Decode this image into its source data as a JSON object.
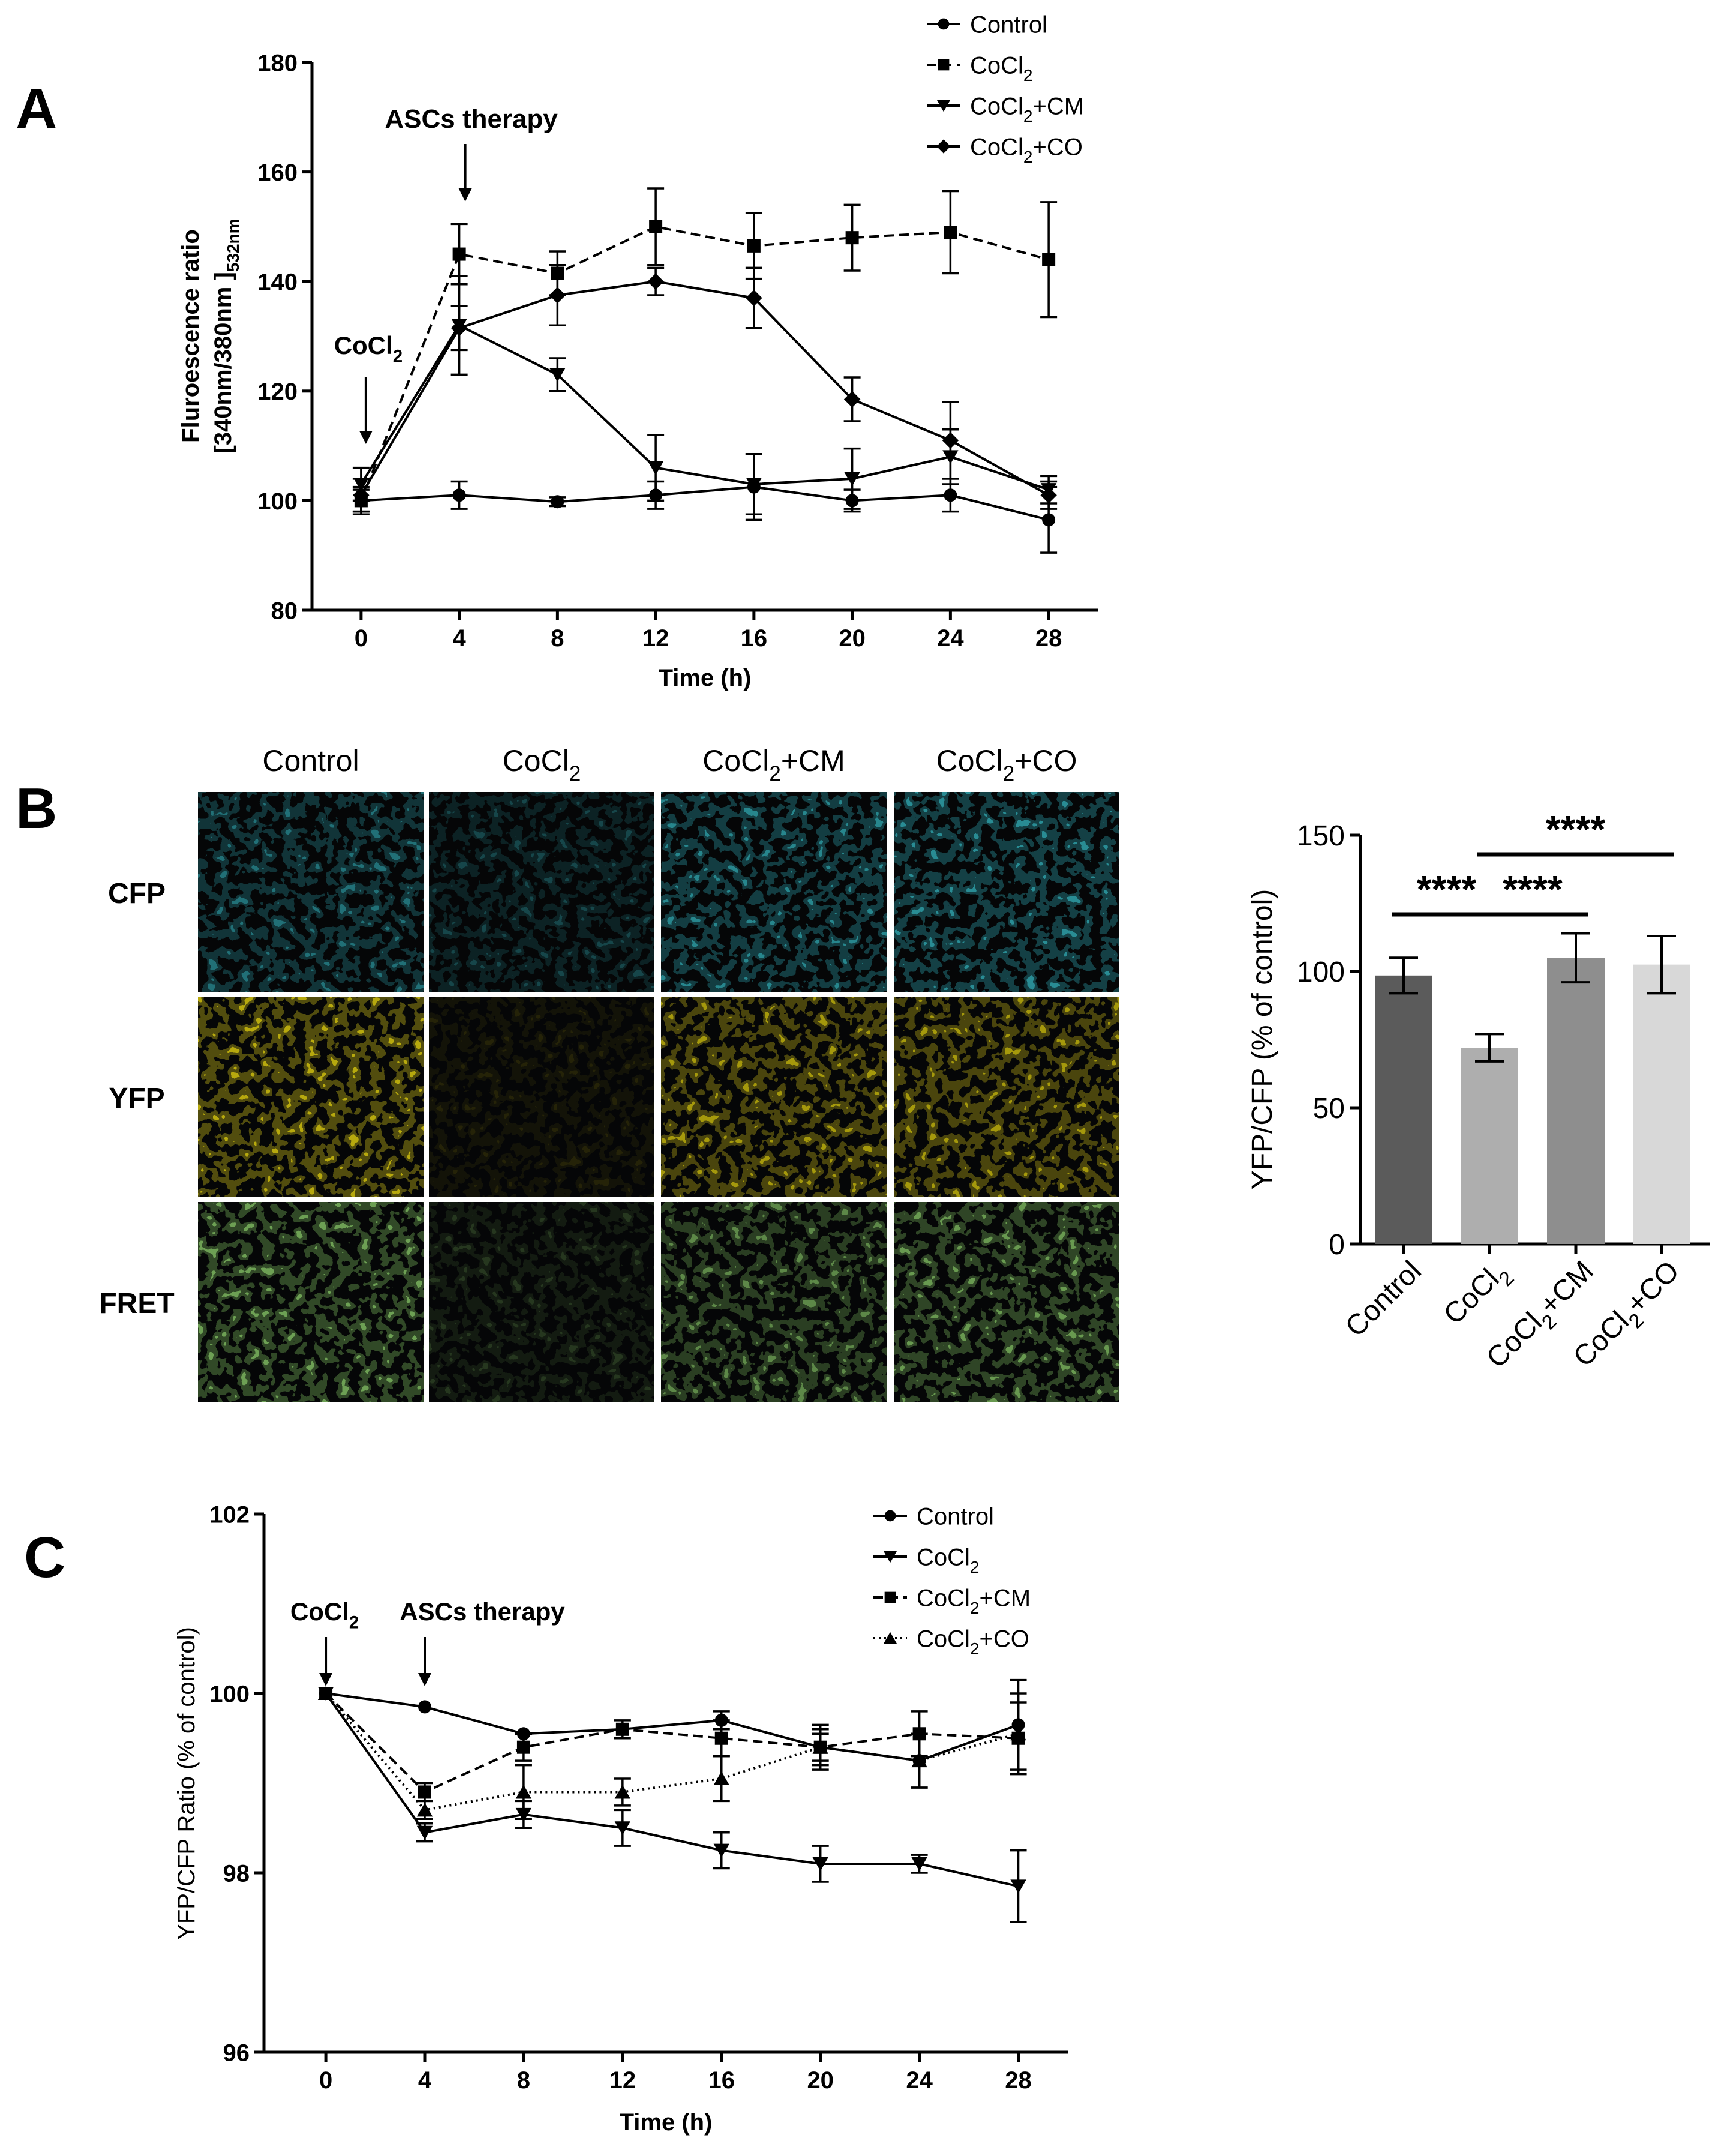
{
  "panel_letters": {
    "a": "A",
    "b": "B",
    "c": "C"
  },
  "chart_data": [
    {
      "panel": "A",
      "type": "line",
      "xlabel": "Time (h)",
      "ylabel_line1": "Fluroescence ratio",
      "ylabel_line2_main": "[340nm/380nm ]",
      "ylabel_line2_sub": "532nm",
      "x": [
        0,
        4,
        8,
        12,
        16,
        20,
        24,
        28
      ],
      "xlim": [
        -2,
        30
      ],
      "ylim": [
        80,
        180
      ],
      "yticks": [
        80,
        100,
        120,
        140,
        160,
        180
      ],
      "annotations": [
        {
          "text": "ASCs  therapy",
          "x": 4
        },
        {
          "text_main": "CoCl",
          "text_sub": "2",
          "x": 0
        }
      ],
      "legend_placement": "top-right",
      "series": [
        {
          "name": "Control",
          "legend_main": "Control",
          "legend_sub": "",
          "legend_tail": "",
          "marker": "circle",
          "dash": "solid",
          "values": [
            100,
            101,
            99.8,
            101,
            102.5,
            100,
            101,
            96.5
          ],
          "errors": [
            2.5,
            2.5,
            0.8,
            2.5,
            6,
            2,
            3,
            6
          ]
        },
        {
          "name": "CoCl2",
          "legend_main": "CoCl",
          "legend_sub": "2",
          "legend_tail": "",
          "marker": "square",
          "dash": "dashed",
          "values": [
            100,
            145,
            141.5,
            150,
            146.5,
            148,
            149,
            144
          ],
          "errors": [
            2,
            5.5,
            4,
            7,
            6,
            6,
            7.5,
            10.5
          ]
        },
        {
          "name": "CoCl2+CM",
          "legend_main": "CoCl",
          "legend_sub": "2",
          "legend_tail": "+CM",
          "marker": "triangle-down",
          "dash": "solid",
          "values": [
            103,
            132,
            123,
            106,
            103,
            104,
            108,
            102
          ],
          "errors": [
            3,
            9,
            3,
            6,
            5.5,
            5.5,
            5,
            2.5
          ]
        },
        {
          "name": "CoCl2+CO",
          "legend_main": "CoCl",
          "legend_sub": "2",
          "legend_tail": "+CO",
          "marker": "diamond",
          "dash": "solid",
          "values": [
            101,
            131.5,
            137.5,
            140,
            137,
            118.5,
            111,
            101
          ],
          "errors": [
            3,
            4,
            5.5,
            2.5,
            5.5,
            4,
            7,
            2.5
          ]
        }
      ]
    },
    {
      "panel": "B-images",
      "type": "table",
      "column_headers": [
        {
          "main": "Control",
          "sub": "",
          "tail": ""
        },
        {
          "main": "CoCl",
          "sub": "2",
          "tail": ""
        },
        {
          "main": "CoCl",
          "sub": "2",
          "tail": "+CM"
        },
        {
          "main": "CoCl",
          "sub": "2",
          "tail": "+CO"
        }
      ],
      "row_labels": [
        "CFP",
        "YFP",
        "FRET"
      ],
      "row_colors": [
        "#35b7c2",
        "#e3d214",
        "#8fd26c"
      ],
      "brightness": [
        [
          0.75,
          0.45,
          0.9,
          0.95
        ],
        [
          1.0,
          0.18,
          0.9,
          0.9
        ],
        [
          0.95,
          0.3,
          0.8,
          0.9
        ]
      ]
    },
    {
      "panel": "B",
      "type": "bar",
      "ylabel": "YFP/CFP (% of control)",
      "ylim": [
        0,
        150
      ],
      "yticks": [
        0,
        50,
        100,
        150
      ],
      "categories": [
        {
          "main": "Control",
          "sub": "",
          "tail": ""
        },
        {
          "main": "CoCl",
          "sub": "2",
          "tail": ""
        },
        {
          "main": "CoCl",
          "sub": "2",
          "tail": "+CM"
        },
        {
          "main": "CoCl",
          "sub": "2",
          "tail": "+CO"
        }
      ],
      "values": [
        98.5,
        72,
        105,
        102.5
      ],
      "errors": [
        6.5,
        5,
        9,
        10.5
      ],
      "bar_colors": [
        "#5b5b5b",
        "#aeaeae",
        "#8e8e8e",
        "#d8d8d8"
      ],
      "significance": [
        {
          "label": "****",
          "from": 0,
          "to": 1
        },
        {
          "label": "****",
          "from": 1,
          "to": 2
        },
        {
          "label": "****",
          "from": 1,
          "to": 3
        }
      ]
    },
    {
      "panel": "C",
      "type": "line",
      "xlabel": "Time (h)",
      "ylabel": "YFP/CFP Ratio (% of control)",
      "x": [
        0,
        4,
        8,
        12,
        16,
        20,
        24,
        28
      ],
      "xlim": [
        -2.5,
        30
      ],
      "ylim": [
        96,
        102
      ],
      "yticks": [
        96,
        98,
        100,
        102
      ],
      "annotations": [
        {
          "text_main": "CoCl",
          "text_sub": "2",
          "x": 0
        },
        {
          "text": "ASCs therapy",
          "x": 4
        }
      ],
      "legend_placement": "top-right",
      "series": [
        {
          "name": "Control",
          "legend_main": "Control",
          "legend_sub": "",
          "legend_tail": "",
          "marker": "circle",
          "dash": "solid",
          "values": [
            100,
            99.85,
            99.55,
            99.6,
            99.7,
            99.4,
            99.25,
            99.65
          ],
          "errors": [
            0,
            0,
            0,
            0,
            0.1,
            0.15,
            0.3,
            0.5
          ]
        },
        {
          "name": "CoCl2",
          "legend_main": "CoCl",
          "legend_sub": "2",
          "legend_tail": "",
          "marker": "triangle-down",
          "dash": "solid",
          "values": [
            100,
            98.45,
            98.65,
            98.5,
            98.25,
            98.1,
            98.1,
            97.85
          ],
          "errors": [
            0,
            0.1,
            0.15,
            0.2,
            0.2,
            0.2,
            0.1,
            0.4
          ]
        },
        {
          "name": "CoCl2+CM",
          "legend_main": "CoCl",
          "legend_sub": "2",
          "legend_tail": "+CM",
          "marker": "square",
          "dash": "dashed",
          "values": [
            100,
            98.9,
            99.4,
            99.6,
            99.5,
            99.4,
            99.55,
            99.5
          ],
          "errors": [
            0,
            0.1,
            0.15,
            0.1,
            0.2,
            0.25,
            0.25,
            0.4
          ]
        },
        {
          "name": "CoCl2+CO",
          "legend_main": "CoCl",
          "legend_sub": "2",
          "legend_tail": "+CO",
          "marker": "triangle-up",
          "dash": "dotted",
          "values": [
            100,
            98.7,
            98.9,
            98.9,
            99.05,
            99.4,
            99.25,
            99.55
          ],
          "errors": [
            0,
            0.1,
            0.3,
            0.15,
            0.25,
            0.2,
            0.3,
            0.45
          ]
        }
      ]
    }
  ]
}
